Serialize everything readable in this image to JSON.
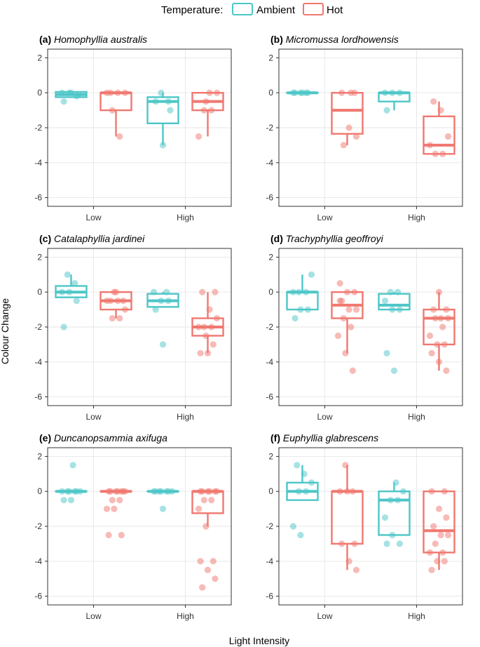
{
  "legend": {
    "title": "Temperature:",
    "entries": [
      {
        "label": "Ambient",
        "color": "#4DC6C8"
      },
      {
        "label": "Hot",
        "color": "#F07870"
      }
    ]
  },
  "xlabel": "Light Intensity",
  "ylabel": "Colour Change",
  "chart_data": [
    {
      "type": "box",
      "tag": "(a)",
      "species": "Homophyllia australis",
      "categories": [
        "Low",
        "High"
      ],
      "ylim": [
        -6.5,
        2.5
      ],
      "yticks": [
        2,
        0,
        -2,
        -4,
        -6
      ],
      "groups": [
        {
          "cat": 0,
          "series": "Ambient",
          "q1": -0.25,
          "median": -0.1,
          "q3": 0.05,
          "whisker_low": -0.25,
          "whisker_high": 0.05,
          "points": [
            0,
            0,
            -0.2,
            -0.5,
            0,
            -0.1
          ]
        },
        {
          "cat": 0,
          "series": "Hot",
          "q1": -1.0,
          "median": 0,
          "q3": 0,
          "whisker_low": -2.5,
          "whisker_high": 0,
          "points": [
            0,
            0,
            0,
            -1.0,
            -2.5,
            0
          ]
        },
        {
          "cat": 1,
          "series": "Ambient",
          "q1": -1.75,
          "median": -0.5,
          "q3": -0.25,
          "whisker_low": -3.0,
          "whisker_high": 0,
          "points": [
            0,
            -0.5,
            -0.5,
            -3.0,
            -1.0
          ]
        },
        {
          "cat": 1,
          "series": "Hot",
          "q1": -1.0,
          "median": -0.5,
          "q3": 0,
          "whisker_low": -2.5,
          "whisker_high": 0,
          "points": [
            0,
            0,
            -1.0,
            -1.0,
            -2.5,
            -0.5
          ]
        }
      ]
    },
    {
      "type": "box",
      "tag": "(b)",
      "species": "Micromussa lordhowensis",
      "categories": [
        "Low",
        "High"
      ],
      "ylim": [
        -6.5,
        2.5
      ],
      "yticks": [
        2,
        0,
        -2,
        -4,
        -6
      ],
      "groups": [
        {
          "cat": 0,
          "series": "Ambient",
          "q1": 0,
          "median": 0,
          "q3": 0,
          "whisker_low": 0,
          "whisker_high": 0,
          "points": [
            0,
            0,
            0,
            0,
            0,
            0
          ]
        },
        {
          "cat": 0,
          "series": "Hot",
          "q1": -2.35,
          "median": -1.0,
          "q3": 0,
          "whisker_low": -3.0,
          "whisker_high": 0,
          "points": [
            0,
            0,
            -2.0,
            -2.5,
            -3.0,
            0
          ]
        },
        {
          "cat": 1,
          "series": "Ambient",
          "q1": -0.5,
          "median": 0,
          "q3": 0,
          "whisker_low": -1.0,
          "whisker_high": 0,
          "points": [
            0,
            0,
            0,
            -1.0
          ]
        },
        {
          "cat": 1,
          "series": "Hot",
          "q1": -3.5,
          "median": -3.0,
          "q3": -1.35,
          "whisker_low": -3.5,
          "whisker_high": -0.5,
          "points": [
            -0.5,
            -1.0,
            -2.5,
            -3.5,
            -3.5,
            -3.0
          ]
        }
      ]
    },
    {
      "type": "box",
      "tag": "(c)",
      "species": "Catalaphyllia jardinei",
      "categories": [
        "Low",
        "High"
      ],
      "ylim": [
        -6.5,
        2.5
      ],
      "yticks": [
        2,
        0,
        -2,
        -4,
        -6
      ],
      "groups": [
        {
          "cat": 0,
          "series": "Ambient",
          "q1": -0.3,
          "median": 0,
          "q3": 0.35,
          "whisker_low": -0.3,
          "whisker_high": 1.0,
          "points": [
            1.0,
            0.5,
            0,
            0,
            -0.5,
            -2.0
          ]
        },
        {
          "cat": 0,
          "series": "Hot",
          "q1": -1.0,
          "median": -0.5,
          "q3": 0,
          "whisker_low": -1.5,
          "whisker_high": 0,
          "points": [
            0,
            -0.5,
            -0.5,
            -0.5,
            -1.0,
            -1.5,
            -1.5,
            -0.5,
            0
          ]
        },
        {
          "cat": 1,
          "series": "Ambient",
          "q1": -0.85,
          "median": -0.5,
          "q3": -0.1,
          "whisker_low": -0.85,
          "whisker_high": 0,
          "points": [
            0,
            0,
            -0.5,
            -0.5,
            -1.0,
            -3.0
          ]
        },
        {
          "cat": 1,
          "series": "Hot",
          "q1": -2.5,
          "median": -2.0,
          "q3": -1.5,
          "whisker_low": -3.5,
          "whisker_high": 0,
          "points": [
            0,
            0,
            -1.0,
            -1.5,
            -2.0,
            -2.0,
            -2.0,
            -2.5,
            -3.0,
            -3.5,
            -3.5
          ]
        }
      ]
    },
    {
      "type": "box",
      "tag": "(d)",
      "species": "Trachyphyllia geoffroyi",
      "categories": [
        "Low",
        "High"
      ],
      "ylim": [
        -6.5,
        2.5
      ],
      "yticks": [
        2,
        0,
        -2,
        -4,
        -6
      ],
      "groups": [
        {
          "cat": 0,
          "series": "Ambient",
          "q1": -1.0,
          "median": 0,
          "q3": 0,
          "whisker_low": -1.0,
          "whisker_high": 1.0,
          "points": [
            1.0,
            0,
            0,
            0,
            -1.0,
            -1.0,
            -1.5
          ]
        },
        {
          "cat": 0,
          "series": "Hot",
          "q1": -1.5,
          "median": -0.75,
          "q3": 0,
          "whisker_low": -3.5,
          "whisker_high": 0,
          "points": [
            0.5,
            0,
            0,
            -0.5,
            -1.0,
            -1.0,
            -1.5,
            -2.0,
            -2.5,
            -3.5,
            -4.5,
            -0.5
          ]
        },
        {
          "cat": 1,
          "series": "Ambient",
          "q1": -1.0,
          "median": -0.75,
          "q3": -0.1,
          "whisker_low": -1.0,
          "whisker_high": 0,
          "points": [
            0,
            0,
            -0.5,
            -1.0,
            -1.0,
            -3.5,
            -4.5
          ]
        },
        {
          "cat": 1,
          "series": "Hot",
          "q1": -3.0,
          "median": -1.5,
          "q3": -1.0,
          "whisker_low": -4.5,
          "whisker_high": 0,
          "points": [
            0,
            -1.0,
            -1.0,
            -1.5,
            -1.5,
            -1.5,
            -2.0,
            -2.5,
            -3.0,
            -3.0,
            -3.5,
            -4.0,
            -4.5
          ]
        }
      ]
    },
    {
      "type": "box",
      "tag": "(e)",
      "species": "Duncanopsammia axifuga",
      "categories": [
        "Low",
        "High"
      ],
      "ylim": [
        -6.5,
        2.5
      ],
      "yticks": [
        2,
        0,
        -2,
        -4,
        -6
      ],
      "groups": [
        {
          "cat": 0,
          "series": "Ambient",
          "q1": 0,
          "median": 0,
          "q3": 0,
          "whisker_low": 0,
          "whisker_high": 0,
          "points": [
            1.5,
            0,
            0,
            0,
            0,
            0,
            0,
            -0.5,
            -0.5
          ]
        },
        {
          "cat": 0,
          "series": "Hot",
          "q1": 0,
          "median": 0,
          "q3": 0,
          "whisker_low": 0,
          "whisker_high": 0,
          "points": [
            0,
            0,
            0,
            0,
            0,
            0,
            0,
            -0.5,
            -0.5,
            -1.0,
            -1.0,
            -2.5,
            -2.5
          ]
        },
        {
          "cat": 1,
          "series": "Ambient",
          "q1": 0,
          "median": 0,
          "q3": 0,
          "whisker_low": 0,
          "whisker_high": 0,
          "points": [
            0,
            0,
            0,
            0,
            0,
            0,
            0,
            -1.0
          ]
        },
        {
          "cat": 1,
          "series": "Hot",
          "q1": -1.25,
          "median": 0,
          "q3": 0,
          "whisker_low": -2.0,
          "whisker_high": 0,
          "points": [
            0,
            0,
            0,
            0,
            0,
            0,
            -0.5,
            -0.5,
            -1.0,
            -2.0,
            -4.0,
            -4.0,
            -4.5,
            -5.0,
            -5.5
          ]
        }
      ]
    },
    {
      "type": "box",
      "tag": "(f)",
      "species": "Euphyllia glabrescens",
      "categories": [
        "Low",
        "High"
      ],
      "ylim": [
        -6.5,
        2.5
      ],
      "yticks": [
        2,
        0,
        -2,
        -4,
        -6
      ],
      "groups": [
        {
          "cat": 0,
          "series": "Ambient",
          "q1": -0.5,
          "median": 0,
          "q3": 0.5,
          "whisker_low": -0.5,
          "whisker_high": 1.5,
          "points": [
            1.5,
            1.0,
            0.5,
            0,
            0,
            -2.0,
            -2.5
          ]
        },
        {
          "cat": 0,
          "series": "Hot",
          "q1": -3.0,
          "median": 0,
          "q3": 0,
          "whisker_low": -4.5,
          "whisker_high": 1.5,
          "points": [
            1.5,
            0,
            0,
            0,
            -3.0,
            -3.0,
            -4.0,
            -4.5
          ]
        },
        {
          "cat": 1,
          "series": "Ambient",
          "q1": -2.5,
          "median": -0.5,
          "q3": 0,
          "whisker_low": -2.5,
          "whisker_high": 0.5,
          "points": [
            0.5,
            0,
            -0.5,
            -0.5,
            -1.5,
            -2.5,
            -3.0,
            -3.0
          ]
        },
        {
          "cat": 1,
          "series": "Hot",
          "q1": -3.5,
          "median": -2.25,
          "q3": 0,
          "whisker_low": -4.5,
          "whisker_high": 0,
          "points": [
            0,
            0,
            -1.0,
            -1.5,
            -2.0,
            -2.5,
            -2.5,
            -3.0,
            -3.5,
            -3.5,
            -4.0,
            -4.0,
            -4.5
          ]
        }
      ]
    }
  ]
}
